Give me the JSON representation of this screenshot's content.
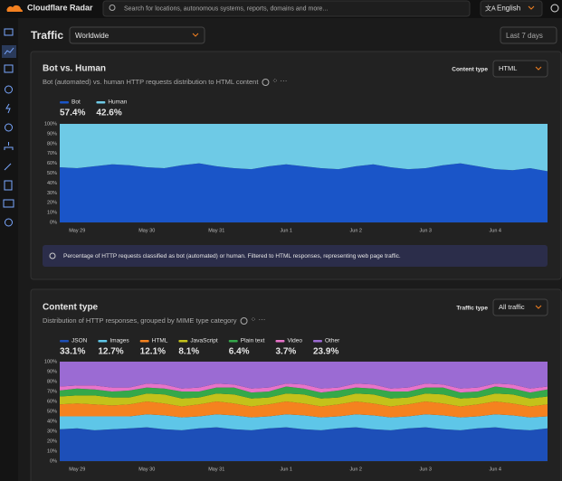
{
  "header": {
    "brand": "Cloudflare Radar",
    "search_placeholder": "Search for locations, autonomous systems, reports, domains and more...",
    "language": "English"
  },
  "page": {
    "title": "Traffic",
    "location": "Worldwide",
    "date_range": "Last 7 days"
  },
  "panels": [
    {
      "title": "Bot vs. Human",
      "subtitle": "Bot (automated) vs. human HTTP requests distribution to HTML content",
      "control_label": "Content type",
      "control_value": "HTML",
      "note": "Percentage of HTTP requests classified as bot (automated) or human. Filtered to HTML responses, representing web page traffic.",
      "chart": {
        "type": "area",
        "stacked": true,
        "categories": [
          null,
          "May 29",
          null,
          null,
          null,
          "May 30",
          null,
          null,
          null,
          "May 31",
          null,
          null,
          null,
          "Jun 1",
          null,
          null,
          null,
          "Jun 2",
          null,
          null,
          null,
          "Jun 3",
          null,
          null,
          null,
          "Jun 4",
          null,
          null,
          null
        ],
        "series": [
          {
            "name": "Bot",
            "share": "57.4%",
            "color": "#1a55c8",
            "values": [
              56,
              55,
              57,
              59,
              58,
              56,
              55,
              58,
              60,
              57,
              55,
              54,
              57,
              59,
              57,
              55,
              54,
              57,
              59,
              56,
              54,
              55,
              58,
              60,
              57,
              54,
              53,
              55,
              52
            ]
          },
          {
            "name": "Human",
            "share": "42.6%",
            "color": "#6ecae6",
            "values": [
              44,
              45,
              43,
              41,
              42,
              44,
              45,
              42,
              40,
              43,
              45,
              46,
              43,
              41,
              43,
              45,
              46,
              43,
              41,
              44,
              46,
              45,
              42,
              40,
              43,
              46,
              47,
              45,
              48
            ]
          }
        ],
        "ylim": [
          0,
          100
        ],
        "yticks": [
          {
            "value": 0,
            "label": "0%"
          },
          {
            "value": 10,
            "label": "10%"
          },
          {
            "value": 20,
            "label": "20%"
          },
          {
            "value": 30,
            "label": "30%"
          },
          {
            "value": 40,
            "label": "40%"
          },
          {
            "value": 50,
            "label": "50%"
          },
          {
            "value": 60,
            "label": "60%"
          },
          {
            "value": 70,
            "label": "70%"
          },
          {
            "value": 80,
            "label": "80%"
          },
          {
            "value": 90,
            "label": "90%"
          },
          {
            "value": 100,
            "label": "100%"
          }
        ]
      }
    },
    {
      "title": "Content type",
      "subtitle": "Distribution of HTTP responses, grouped by MIME type category",
      "control_label": "Traffic type",
      "control_value": "All traffic",
      "chart": {
        "type": "area",
        "stacked": true,
        "categories": [
          null,
          "May 29",
          null,
          null,
          null,
          "May 30",
          null,
          null,
          null,
          "May 31",
          null,
          null,
          null,
          "Jun 1",
          null,
          null,
          null,
          "Jun 2",
          null,
          null,
          null,
          "Jun 3",
          null,
          null,
          null,
          "Jun 4",
          null,
          null,
          null
        ],
        "series": [
          {
            "name": "JSON",
            "share": "33.1%",
            "color": "#1d4fb8",
            "values": [
              32,
              33,
              31,
              32,
              33,
              34,
              32,
              31,
              33,
              34,
              32,
              31,
              33,
              34,
              32,
              31,
              33,
              34,
              32,
              31,
              33,
              34,
              32,
              31,
              33,
              34,
              32,
              31,
              33
            ]
          },
          {
            "name": "Images",
            "share": "12.7%",
            "color": "#5ec6e8",
            "values": [
              13,
              12,
              14,
              13,
              12,
              13,
              14,
              13,
              12,
              13,
              14,
              13,
              12,
              13,
              14,
              13,
              12,
              13,
              14,
              13,
              12,
              13,
              14,
              13,
              12,
              13,
              14,
              13,
              12
            ]
          },
          {
            "name": "HTML",
            "share": "12.1%",
            "color": "#f5821f",
            "values": [
              12,
              13,
              12,
              11,
              12,
              13,
              12,
              11,
              12,
              13,
              12,
              11,
              12,
              13,
              12,
              11,
              12,
              13,
              12,
              11,
              12,
              13,
              12,
              11,
              12,
              13,
              12,
              11,
              12
            ]
          },
          {
            "name": "JavaScript",
            "share": "8.1%",
            "color": "#c4c21a",
            "values": [
              8,
              8,
              9,
              8,
              7,
              8,
              9,
              8,
              7,
              8,
              9,
              8,
              7,
              8,
              9,
              8,
              7,
              8,
              9,
              8,
              7,
              8,
              9,
              8,
              7,
              8,
              9,
              8,
              8
            ]
          },
          {
            "name": "Plain text",
            "share": "6.4%",
            "color": "#35a84a",
            "values": [
              6,
              7,
              6,
              6,
              7,
              6,
              6,
              7,
              6,
              6,
              7,
              6,
              6,
              7,
              6,
              6,
              7,
              6,
              6,
              7,
              6,
              6,
              7,
              6,
              6,
              7,
              6,
              6,
              7
            ]
          },
          {
            "name": "Video",
            "share": "3.7%",
            "color": "#e873c9",
            "values": [
              4,
              3,
              4,
              4,
              3,
              4,
              4,
              3,
              4,
              4,
              3,
              4,
              4,
              3,
              4,
              4,
              3,
              4,
              4,
              3,
              4,
              4,
              3,
              4,
              4,
              3,
              4,
              4,
              3
            ]
          },
          {
            "name": "Other",
            "share": "23.9%",
            "color": "#9b6bd3",
            "values": [
              25,
              24,
              24,
              26,
              26,
              22,
              23,
              27,
              26,
              22,
              23,
              27,
              26,
              22,
              23,
              27,
              26,
              22,
              23,
              27,
              26,
              22,
              23,
              27,
              26,
              22,
              23,
              27,
              25
            ]
          }
        ],
        "ylim": [
          0,
          100
        ],
        "yticks": [
          {
            "value": 0,
            "label": "0%"
          },
          {
            "value": 10,
            "label": "10%"
          },
          {
            "value": 20,
            "label": "20%"
          },
          {
            "value": 30,
            "label": "30%"
          },
          {
            "value": 40,
            "label": "40%"
          },
          {
            "value": 50,
            "label": "50%"
          },
          {
            "value": 60,
            "label": "60%"
          },
          {
            "value": 70,
            "label": "70%"
          },
          {
            "value": 80,
            "label": "80%"
          },
          {
            "value": 90,
            "label": "90%"
          },
          {
            "value": 100,
            "label": "100%"
          }
        ]
      }
    }
  ]
}
